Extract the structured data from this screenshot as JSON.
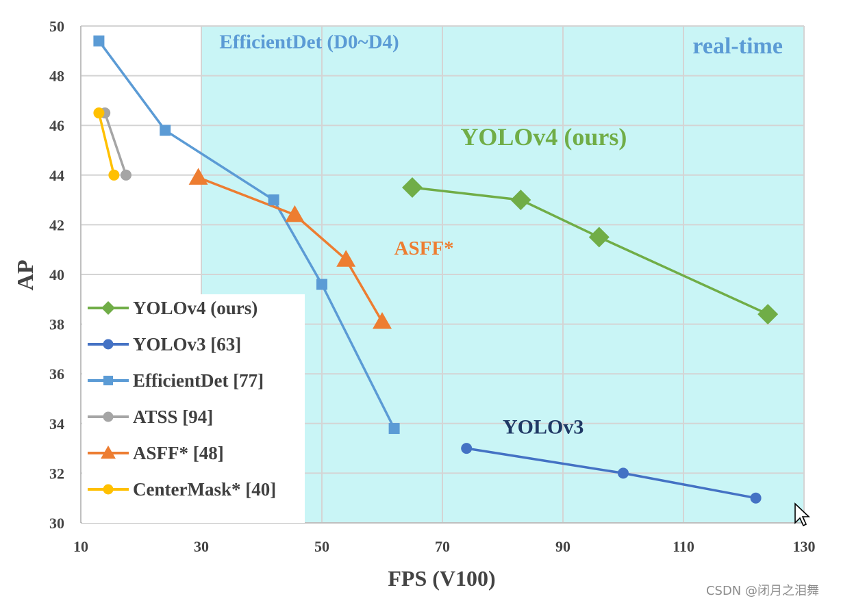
{
  "chart_data": {
    "type": "line",
    "xlabel": "FPS (V100)",
    "ylabel": "AP",
    "xlim": [
      10,
      130
    ],
    "ylim": [
      30,
      50
    ],
    "xticks": [
      10,
      30,
      50,
      70,
      90,
      110,
      130
    ],
    "yticks": [
      30,
      32,
      34,
      36,
      38,
      40,
      42,
      44,
      46,
      48,
      50
    ],
    "grid": true,
    "realtime_region": {
      "x_start": 30,
      "label": "real-time",
      "color": "#c9f5f6"
    },
    "legend_position": "left",
    "series": [
      {
        "name": "YOLOv4 (ours)",
        "marker": "diamond",
        "color": "#70ad47",
        "points": [
          {
            "x": 65,
            "y": 43.5
          },
          {
            "x": 83,
            "y": 43.0
          },
          {
            "x": 96,
            "y": 41.5
          },
          {
            "x": 124,
            "y": 38.4
          }
        ]
      },
      {
        "name": "YOLOv3 [63]",
        "marker": "circle",
        "color": "#4472c4",
        "points": [
          {
            "x": 74,
            "y": 33.0
          },
          {
            "x": 100,
            "y": 32.0
          },
          {
            "x": 122,
            "y": 31.0
          }
        ]
      },
      {
        "name": "EfficientDet [77]",
        "marker": "square",
        "color": "#5b9bd5",
        "points": [
          {
            "x": 13,
            "y": 49.4
          },
          {
            "x": 24,
            "y": 45.8
          },
          {
            "x": 42,
            "y": 43.0
          },
          {
            "x": 50,
            "y": 39.6
          },
          {
            "x": 62,
            "y": 33.8
          }
        ]
      },
      {
        "name": "ATSS [94]",
        "marker": "circle",
        "color": "#a5a5a5",
        "points": [
          {
            "x": 14,
            "y": 46.5
          },
          {
            "x": 17.5,
            "y": 44.0
          }
        ]
      },
      {
        "name": "ASFF* [48]",
        "marker": "triangle",
        "color": "#ed7d31",
        "points": [
          {
            "x": 29.5,
            "y": 43.9
          },
          {
            "x": 45.5,
            "y": 42.4
          },
          {
            "x": 54,
            "y": 40.6
          },
          {
            "x": 60,
            "y": 38.1
          }
        ]
      },
      {
        "name": "CenterMask* [40]",
        "marker": "circle",
        "color": "#ffc000",
        "points": [
          {
            "x": 13,
            "y": 46.5
          },
          {
            "x": 15.5,
            "y": 44.0
          }
        ]
      }
    ],
    "annotations": [
      {
        "text": "EfficientDet (D0~D4)",
        "x": 33,
        "y": 49.1,
        "color": "#5b9bd5",
        "size": 29
      },
      {
        "text": "real-time",
        "x": 119,
        "y": 48.9,
        "color": "#5b9bd5",
        "size": 34
      },
      {
        "text": "YOLOv4 (ours)",
        "x": 73,
        "y": 45.2,
        "color": "#70ad47",
        "size": 36
      },
      {
        "text": "ASFF*",
        "x": 62,
        "y": 40.8,
        "color": "#ed7d31",
        "size": 29
      },
      {
        "text": "YOLOv3",
        "x": 80,
        "y": 33.6,
        "color": "#1f3864",
        "size": 30
      }
    ]
  },
  "watermark": "CSDN @闭月之泪舞"
}
